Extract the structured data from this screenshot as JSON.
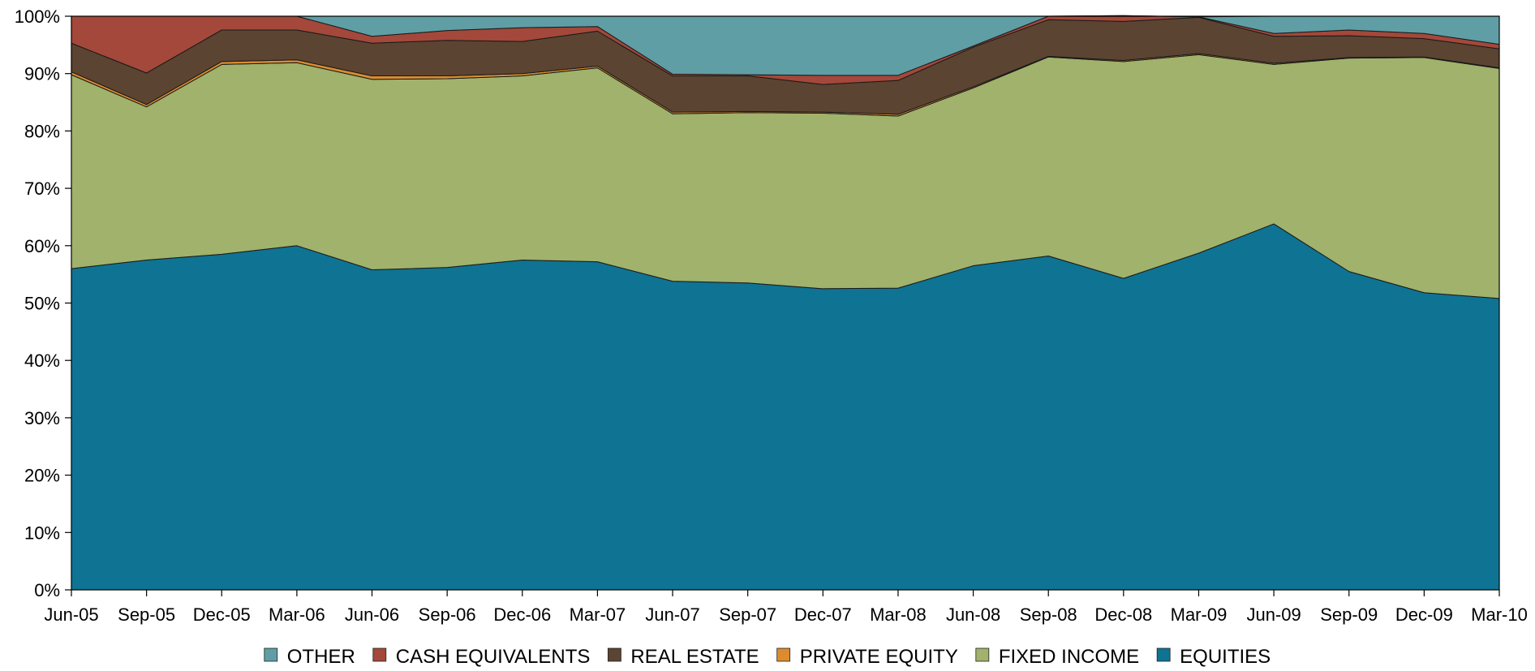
{
  "chart_data": {
    "type": "area",
    "stacked": true,
    "percent": true,
    "title": "",
    "xlabel": "",
    "ylabel": "",
    "ylim": [
      0,
      100
    ],
    "grid": false,
    "legend_position": "bottom",
    "categories": [
      "Jun-05",
      "Sep-05",
      "Dec-05",
      "Mar-06",
      "Jun-06",
      "Sep-06",
      "Dec-06",
      "Mar-07",
      "Jun-07",
      "Sep-07",
      "Dec-07",
      "Mar-08",
      "Jun-08",
      "Sep-08",
      "Dec-08",
      "Mar-09",
      "Jun-09",
      "Sep-09",
      "Dec-09",
      "Mar-10"
    ],
    "yticks": [
      "0%",
      "10%",
      "20%",
      "30%",
      "40%",
      "50%",
      "60%",
      "70%",
      "80%",
      "90%",
      "100%"
    ],
    "series": [
      {
        "name": "EQUITIES",
        "color": "#0f7393",
        "values": [
          56.0,
          57.5,
          58.5,
          60.0,
          55.8,
          56.2,
          57.5,
          57.2,
          53.8,
          53.5,
          52.5,
          52.6,
          56.5,
          58.2,
          54.3,
          58.7,
          63.8,
          55.5,
          51.8,
          50.8
        ]
      },
      {
        "name": "FIXED INCOME",
        "color": "#a0b26b",
        "values": [
          33.8,
          26.7,
          33.1,
          31.9,
          33.2,
          32.9,
          32.1,
          33.8,
          29.2,
          29.7,
          30.6,
          30.0,
          31.0,
          34.7,
          37.8,
          34.6,
          27.8,
          37.2,
          41.0,
          40.1
        ]
      },
      {
        "name": "PRIVATE EQUITY",
        "color": "#dc8c2e",
        "values": [
          0.5,
          0.4,
          0.5,
          0.5,
          0.6,
          0.5,
          0.4,
          0.3,
          0.3,
          0.2,
          0.2,
          0.3,
          0.2,
          0.1,
          0.2,
          0.2,
          0.2,
          0.1,
          0.1,
          0.1
        ]
      },
      {
        "name": "REAL ESTATE",
        "color": "#5c4432",
        "values": [
          5.0,
          5.5,
          5.5,
          5.2,
          5.7,
          6.2,
          5.6,
          6.1,
          6.3,
          6.2,
          4.8,
          5.9,
          6.9,
          6.4,
          6.8,
          6.3,
          4.7,
          3.8,
          3.2,
          3.3
        ]
      },
      {
        "name": "CASH EQUIVALENTS",
        "color": "#a3483a",
        "values": [
          4.7,
          9.9,
          2.4,
          2.4,
          1.2,
          1.7,
          2.4,
          0.8,
          0.3,
          0.2,
          1.6,
          0.9,
          0.2,
          0.6,
          1.0,
          0.1,
          0.5,
          1.0,
          0.9,
          0.8
        ]
      },
      {
        "name": "OTHER",
        "color": "#5f9ea5",
        "values": [
          0.0,
          0.0,
          0.0,
          0.0,
          3.5,
          2.5,
          2.0,
          1.8,
          10.1,
          10.2,
          10.3,
          10.3,
          5.2,
          0.0,
          0.0,
          0.0,
          3.0,
          2.4,
          3.0,
          4.9
        ]
      }
    ],
    "legend": [
      "OTHER",
      "CASH EQUIVALENTS",
      "REAL ESTATE",
      "PRIVATE EQUITY",
      "FIXED INCOME",
      "EQUITIES"
    ]
  }
}
